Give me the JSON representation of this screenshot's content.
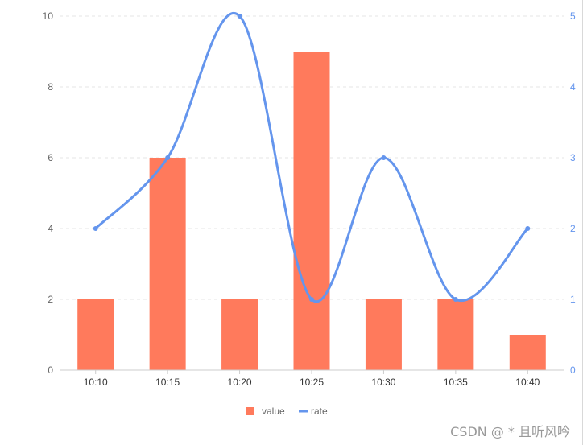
{
  "chart_data": {
    "type": "bar",
    "categories": [
      "10:10",
      "10:15",
      "10:20",
      "10:25",
      "10:30",
      "10:35",
      "10:40"
    ],
    "series": [
      {
        "name": "value",
        "type": "bar",
        "axis": "left",
        "values": [
          2,
          6,
          2,
          9,
          2,
          2,
          1
        ]
      },
      {
        "name": "rate",
        "type": "line",
        "smooth": true,
        "axis": "right",
        "values": [
          2,
          3,
          5,
          1,
          3,
          1,
          2
        ]
      }
    ],
    "y_left": {
      "min": 0,
      "max": 10,
      "ticks": [
        0,
        2,
        4,
        6,
        8,
        10
      ]
    },
    "y_right": {
      "min": 0,
      "max": 5,
      "ticks": [
        0,
        1,
        2,
        3,
        4,
        5
      ]
    },
    "grid": "horizontal-dashed",
    "legend": "bottom-center"
  },
  "colors": {
    "bar": "#ff7a5c",
    "line": "#6495ed",
    "right_axis": "#6495ed",
    "left_axis_text": "#666666",
    "grid": "#e6e6e6"
  },
  "watermark": "CSDN @ * 且听风吟"
}
